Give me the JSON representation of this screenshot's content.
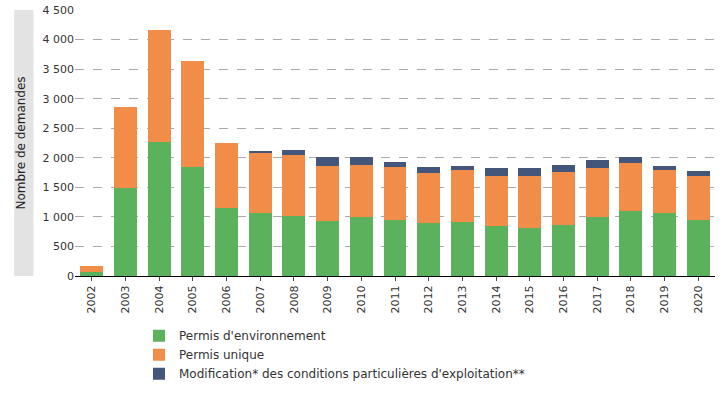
{
  "chart_data": {
    "type": "bar",
    "stacked": true,
    "grid": true,
    "legend": "bottom",
    "y_label": "Nombre de demandes",
    "categories": [
      "2002",
      "2003",
      "2004",
      "2005",
      "2006",
      "2007",
      "2008",
      "2009",
      "2010",
      "2011",
      "2012",
      "2013",
      "2014",
      "2015",
      "2016",
      "2017",
      "2018",
      "2019",
      "2020"
    ],
    "series": [
      {
        "name": "Permis d'environnement",
        "color": "#5cb15c",
        "values": [
          60,
          1490,
          2270,
          1840,
          1150,
          1060,
          1010,
          930,
          990,
          950,
          890,
          910,
          840,
          810,
          860,
          990,
          1100,
          1060,
          950
        ]
      },
      {
        "name": "Permis unique",
        "color": "#f28c49",
        "values": [
          110,
          1370,
          1890,
          1800,
          1100,
          1020,
          1040,
          930,
          890,
          890,
          850,
          890,
          860,
          880,
          900,
          840,
          810,
          740,
          750
        ]
      },
      {
        "name": "Modification* des conditions particulières d'exploitation**",
        "color": "#44577a",
        "values": [
          0,
          0,
          0,
          0,
          0,
          40,
          90,
          150,
          130,
          90,
          100,
          60,
          120,
          130,
          110,
          130,
          100,
          60,
          80
        ]
      }
    ],
    "ylim": [
      0,
      4500
    ],
    "yticks": [
      0,
      500,
      {
        "value": 1000,
        "label": "1 000"
      },
      {
        "value": 1500,
        "label": "1 500"
      },
      {
        "value": 2000,
        "label": "2 000"
      },
      {
        "value": 2500,
        "label": "2 500"
      },
      {
        "value": 3000,
        "label": "3 000"
      },
      {
        "value": 3500,
        "label": "3 500"
      },
      {
        "value": 4000,
        "label": "4 000"
      },
      {
        "value": 4500,
        "label": "4 500"
      }
    ]
  }
}
